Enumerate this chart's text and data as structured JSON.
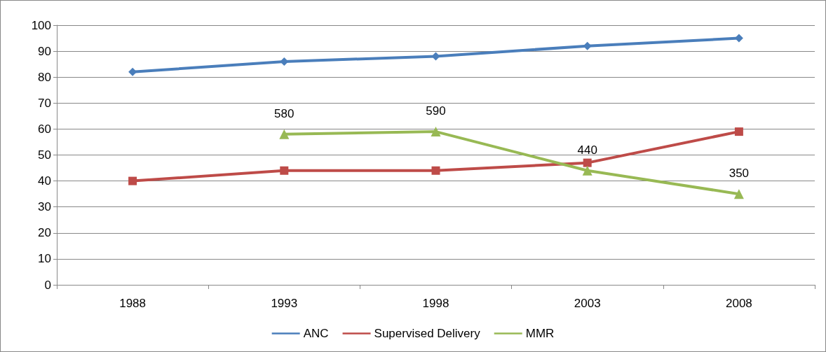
{
  "chart_data": {
    "type": "line",
    "categories": [
      "1988",
      "1993",
      "1998",
      "2003",
      "2008"
    ],
    "series": [
      {
        "name": "ANC",
        "color": "#4a7ebb",
        "marker": "diamond",
        "values": [
          82,
          86,
          88,
          92,
          95
        ]
      },
      {
        "name": "Supervised Delivery",
        "color": "#be4b48",
        "marker": "square",
        "values": [
          40,
          44,
          44,
          47,
          59
        ]
      },
      {
        "name": "MMR",
        "color": "#98b954",
        "marker": "triangle",
        "axis": "y2",
        "values": [
          null,
          580,
          590,
          440,
          350
        ],
        "value_labels": [
          null,
          "580",
          "590",
          "440",
          "350"
        ]
      }
    ],
    "ylim": [
      0,
      100
    ],
    "yticks": [
      0,
      10,
      20,
      30,
      40,
      50,
      60,
      70,
      80,
      90,
      100
    ],
    "y2lim": [
      0,
      1000
    ],
    "grid": "y",
    "legend": "bottom",
    "line_style": "solid"
  }
}
